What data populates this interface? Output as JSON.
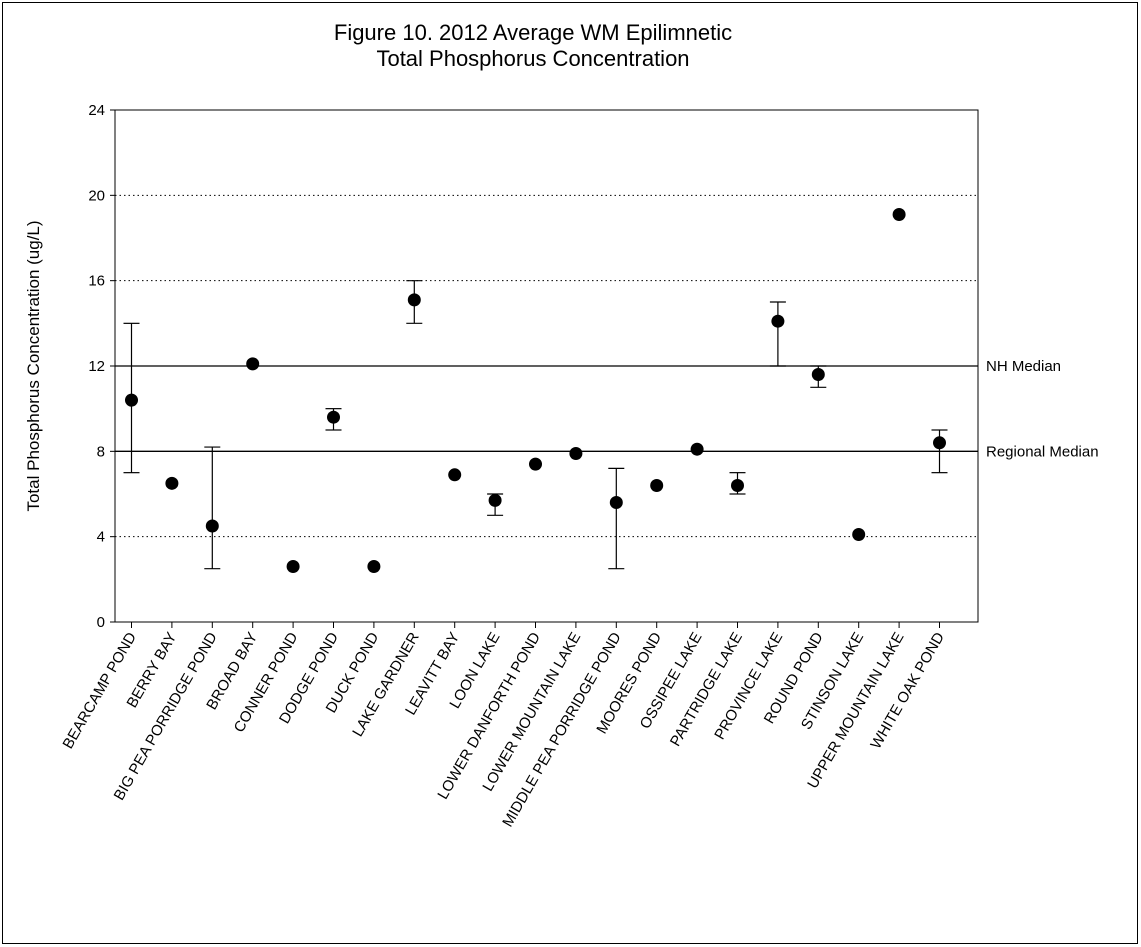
{
  "chart_data": {
    "type": "scatter",
    "title": [
      "Figure 10. 2012 Average WM Epilimnetic",
      "Total Phosphorus Concentration"
    ],
    "xlabel": "",
    "ylabel": "Total Phosphorus Concentration (ug/L)",
    "ylim": [
      0,
      24
    ],
    "yticks": [
      0,
      4,
      8,
      12,
      16,
      20,
      24
    ],
    "grid": "dotted horizontal at 4, 16, 20",
    "categories": [
      "BEARCAMP POND",
      "BERRY BAY",
      "BIG PEA PORRIDGE POND",
      "BROAD BAY",
      "CONNER POND",
      "DODGE POND",
      "DUCK POND",
      "LAKE GARDNER",
      "LEAVITT BAY",
      "LOON LAKE",
      "LOWER DANFORTH POND",
      "LOWER MOUNTAIN LAKE",
      "MIDDLE PEA PORRIDGE POND",
      "MOORES POND",
      "OSSIPEE LAKE",
      "PARTRIDGE LAKE",
      "PROVINCE LAKE",
      "ROUND POND",
      "STINSON LAKE",
      "UPPER MOUNTAIN LAKE",
      "WHITE OAK POND"
    ],
    "series": [
      {
        "values": [
          10.4,
          6.5,
          4.5,
          12.1,
          2.6,
          9.6,
          2.6,
          15.1,
          6.9,
          5.7,
          7.4,
          7.9,
          5.6,
          6.4,
          8.1,
          6.4,
          14.1,
          11.6,
          4.1,
          19.1,
          8.4
        ],
        "err_low": [
          7.0,
          null,
          2.5,
          null,
          null,
          9.0,
          null,
          14.0,
          null,
          5.0,
          null,
          null,
          2.5,
          null,
          null,
          6.0,
          12.0,
          11.0,
          null,
          null,
          7.0
        ],
        "err_high": [
          14.0,
          null,
          8.2,
          null,
          null,
          10.0,
          null,
          16.0,
          null,
          6.0,
          null,
          null,
          7.2,
          null,
          null,
          7.0,
          15.0,
          12.0,
          null,
          null,
          9.0
        ]
      }
    ],
    "reference_lines": [
      {
        "label": "NH Median",
        "value": 12
      },
      {
        "label": "Regional Median",
        "value": 8
      }
    ],
    "colors": {
      "marker": "#000000",
      "line": "#000000"
    }
  }
}
